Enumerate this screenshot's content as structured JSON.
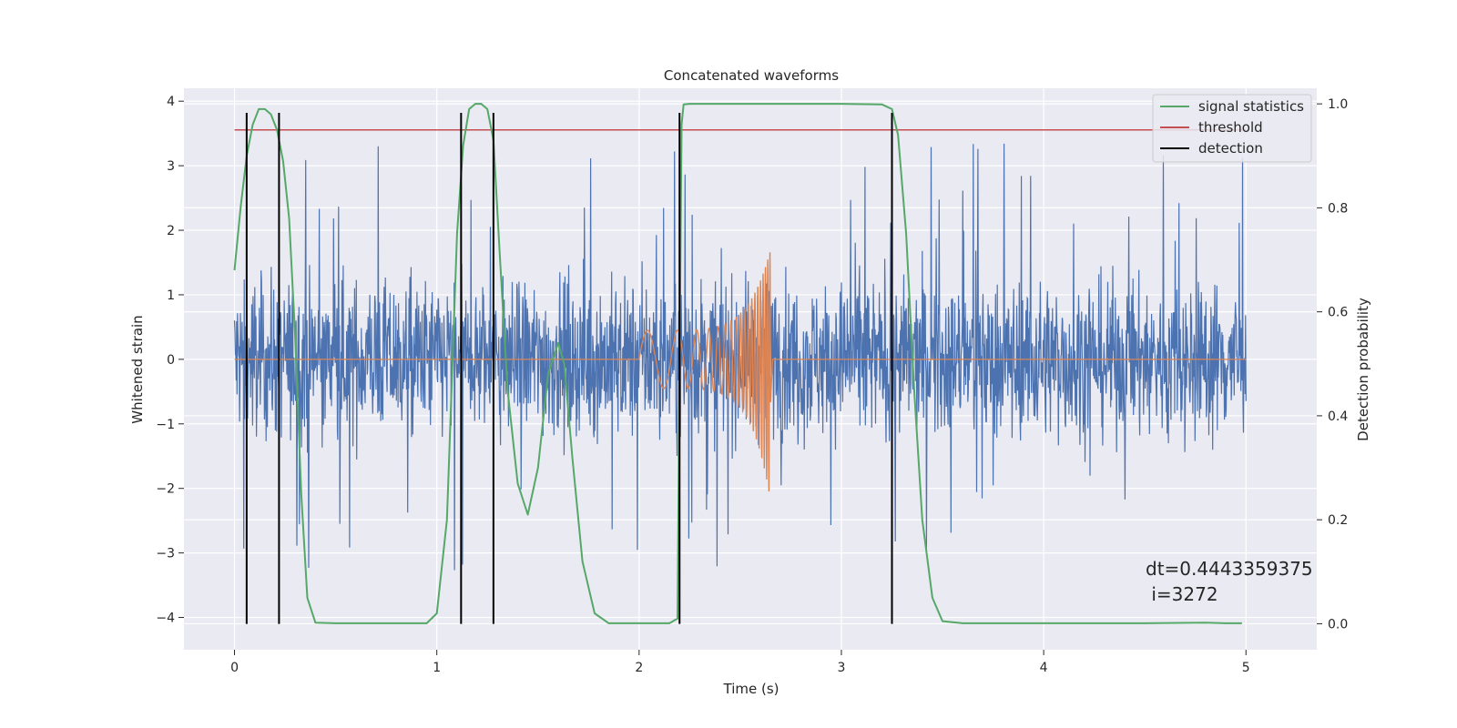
{
  "chart_data": {
    "type": "line",
    "title": "Concatenated waveforms",
    "xlabel": "Time (s)",
    "ylabel_left": "Whitened strain",
    "ylabel_right": "Detection probability",
    "xlim": [
      -0.25,
      5.35
    ],
    "ylim_left": [
      -4.5,
      4.2
    ],
    "ylim_right": [
      -0.05,
      1.03
    ],
    "x_ticks": [
      0,
      1,
      2,
      3,
      4,
      5
    ],
    "x_tick_labels": [
      "0",
      "1",
      "2",
      "3",
      "4",
      "5"
    ],
    "y_left_ticks": [
      -4,
      -3,
      -2,
      -1,
      0,
      1,
      2,
      3,
      4
    ],
    "y_left_tick_labels": [
      "−4",
      "−3",
      "−2",
      "−1",
      "0",
      "1",
      "2",
      "3",
      "4"
    ],
    "y_right_ticks": [
      0.0,
      0.2,
      0.4,
      0.6,
      0.8,
      1.0
    ],
    "y_right_tick_labels": [
      "0.0",
      "0.2",
      "0.4",
      "0.6",
      "0.8",
      "1.0"
    ],
    "grid": true,
    "legend_position": "top-right",
    "legend": [
      "signal statistics",
      "threshold",
      "detection"
    ],
    "series": [
      {
        "name": "signal statistics",
        "axis": "right",
        "color": "#55a868",
        "x": [
          0,
          0.03,
          0.06,
          0.09,
          0.12,
          0.15,
          0.18,
          0.21,
          0.24,
          0.27,
          0.3,
          0.33,
          0.36,
          0.4,
          0.5,
          0.8,
          0.95,
          1.0,
          1.05,
          1.1,
          1.13,
          1.16,
          1.19,
          1.22,
          1.25,
          1.28,
          1.31,
          1.35,
          1.4,
          1.45,
          1.5,
          1.55,
          1.6,
          1.63,
          1.67,
          1.72,
          1.78,
          1.85,
          2.0,
          2.15,
          2.19,
          2.2,
          2.21,
          2.22,
          2.25,
          2.4,
          2.7,
          3.0,
          3.2,
          3.25,
          3.28,
          3.32,
          3.36,
          3.4,
          3.45,
          3.5,
          3.6,
          4.0,
          4.5,
          4.8,
          4.9,
          4.98
        ],
        "y": [
          0.68,
          0.8,
          0.9,
          0.96,
          0.99,
          0.99,
          0.98,
          0.95,
          0.89,
          0.78,
          0.55,
          0.25,
          0.05,
          0.002,
          0.001,
          0.001,
          0.001,
          0.02,
          0.2,
          0.75,
          0.92,
          0.99,
          1.0,
          1.0,
          0.99,
          0.93,
          0.72,
          0.45,
          0.27,
          0.21,
          0.3,
          0.48,
          0.54,
          0.5,
          0.32,
          0.12,
          0.02,
          0.001,
          0.001,
          0.001,
          0.01,
          0.5,
          0.96,
          0.999,
          1.0,
          1.0,
          1.0,
          1.0,
          0.999,
          0.99,
          0.94,
          0.75,
          0.45,
          0.2,
          0.05,
          0.005,
          0.001,
          0.001,
          0.001,
          0.002,
          0.001,
          0.001
        ]
      },
      {
        "name": "threshold",
        "axis": "right",
        "color": "#c44e52",
        "x": [
          0,
          5.0
        ],
        "y": [
          0.95,
          0.95
        ]
      },
      {
        "name": "detection",
        "axis": "left",
        "color": "#000000",
        "kind": "vlines",
        "x": [
          0.06,
          0.22,
          1.12,
          1.28,
          2.2,
          3.25
        ],
        "ymin": -4.1,
        "ymax": 3.82
      },
      {
        "axis": "left",
        "color": "#4c72b0",
        "kind": "noise",
        "x_range": [
          0,
          5.0
        ],
        "envelope": 1.55,
        "spike_max": 3.4
      },
      {
        "axis": "left",
        "color": "#dd8452",
        "kind": "chirp",
        "x_range": [
          2.0,
          2.65
        ],
        "amplitude_start": 0.45,
        "amplitude_peak": 1.7,
        "amplitude_min_peak": -2.2,
        "baseline": 0
      }
    ],
    "annotation": {
      "line1": "dt=0.4443359375",
      "line2": " i=3272"
    }
  }
}
